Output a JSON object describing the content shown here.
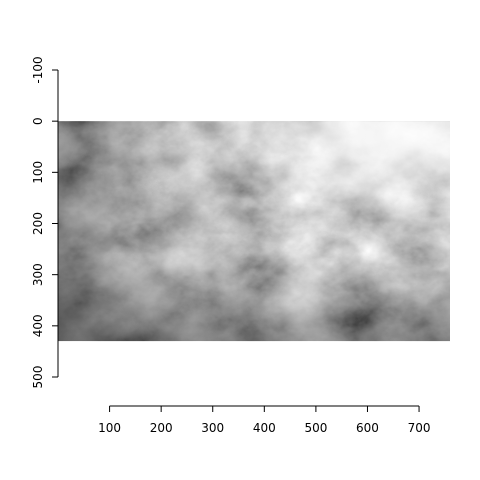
{
  "chart_data": {
    "type": "heatmap",
    "title": "",
    "xlabel": "",
    "ylabel": "",
    "colormap": "grayscale",
    "background": "#ffffff",
    "xlim": [
      0,
      760
    ],
    "ylim": [
      -100,
      500
    ],
    "y_reversed": true,
    "image_extent": {
      "x": [
        0,
        760
      ],
      "y": [
        0,
        430
      ]
    },
    "x_ticks": [
      100,
      200,
      300,
      400,
      500,
      600,
      700
    ],
    "y_ticks": [
      -100,
      0,
      100,
      200,
      300,
      400,
      500
    ],
    "grid": false,
    "legend": "none"
  }
}
